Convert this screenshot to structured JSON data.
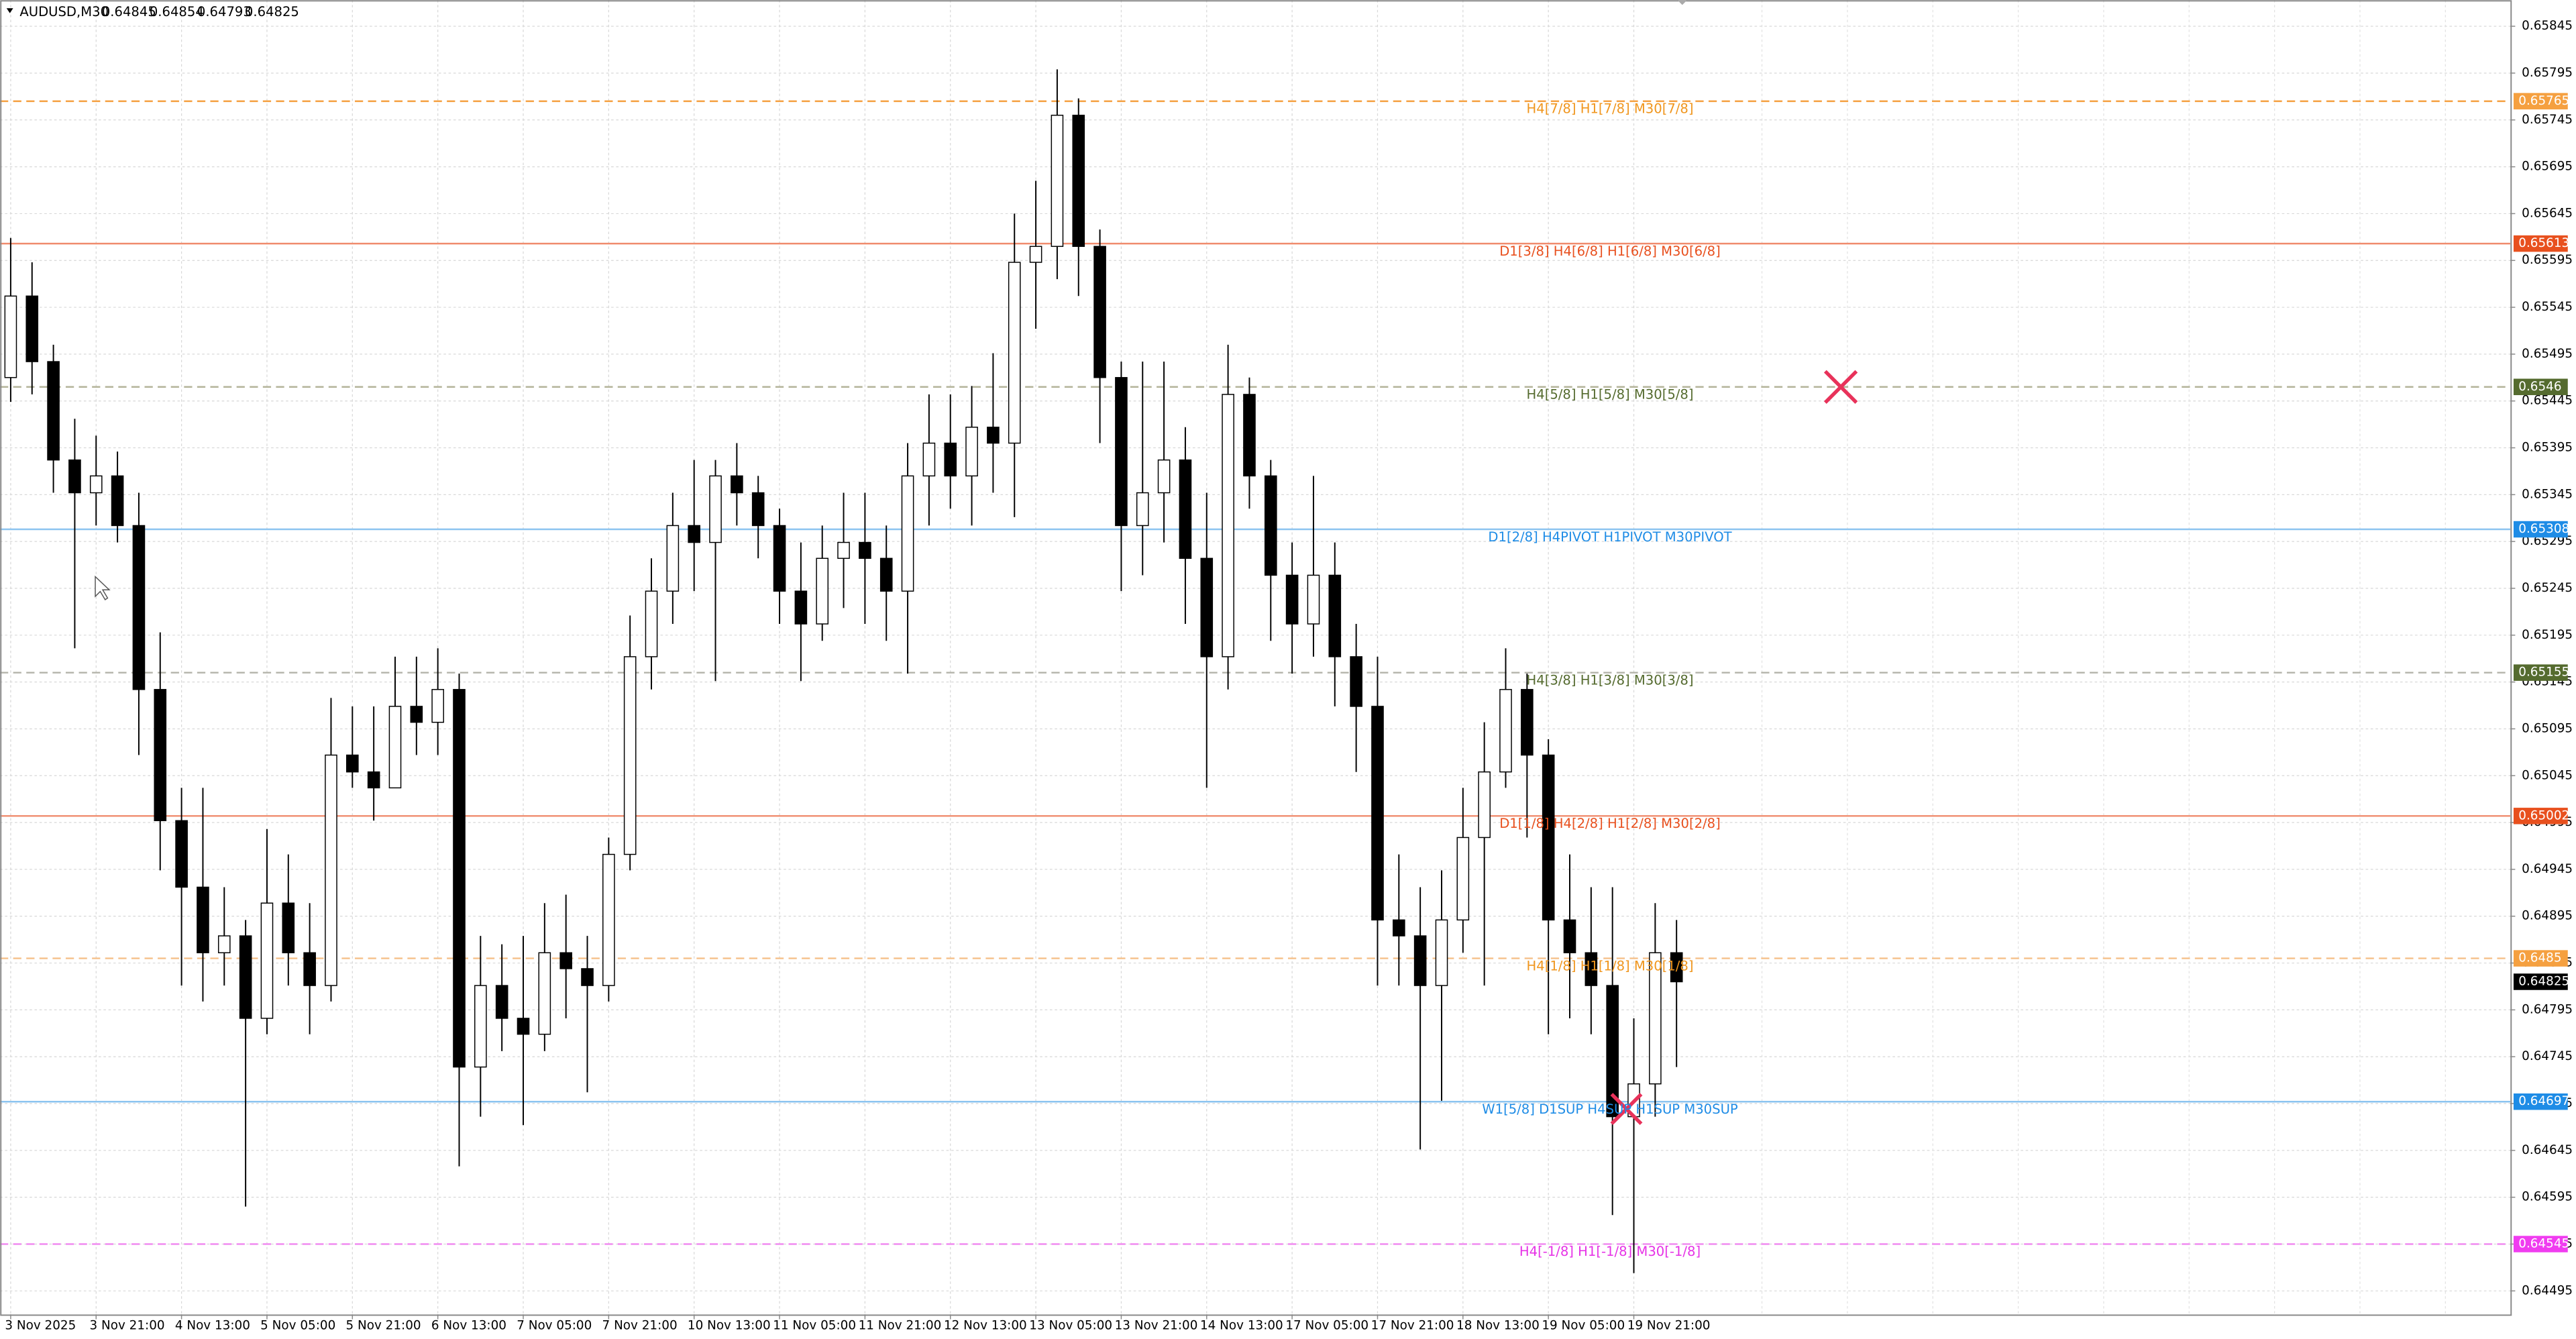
{
  "chart_data": {
    "type": "candlestick",
    "symbol": "AUDUSD,M30",
    "quote": [
      0.64845,
      0.64854,
      0.64793,
      0.64825
    ],
    "ylim": [
      0.6447,
      0.65873
    ],
    "yticks": [
      0.65845,
      0.65795,
      0.65745,
      0.65695,
      0.65645,
      0.65595,
      0.65545,
      0.65495,
      0.65445,
      0.65395,
      0.65345,
      0.65295,
      0.65245,
      0.65195,
      0.65145,
      0.65095,
      0.65045,
      0.64995,
      0.64945,
      0.64895,
      0.64845,
      0.64795,
      0.64745,
      0.64695,
      0.64645,
      0.64595,
      0.64545,
      0.64495
    ],
    "grid": true,
    "up_color": "#ffffff",
    "down_color": "#000000",
    "categories": [
      "3 Nov 2025",
      null,
      null,
      null,
      "3 Nov 21:00",
      null,
      null,
      null,
      "4 Nov 13:00",
      null,
      null,
      null,
      "5 Nov 05:00",
      null,
      null,
      null,
      "5 Nov 21:00",
      null,
      null,
      null,
      "6 Nov 13:00",
      null,
      null,
      null,
      "7 Nov 05:00",
      null,
      null,
      null,
      "7 Nov 21:00",
      null,
      null,
      null,
      "10 Nov 13:00",
      null,
      null,
      null,
      "11 Nov 05:00",
      null,
      null,
      null,
      "11 Nov 21:00",
      null,
      null,
      null,
      "12 Nov 13:00",
      null,
      null,
      null,
      "13 Nov 05:00",
      null,
      null,
      null,
      "13 Nov 21:00",
      null,
      null,
      null,
      "14 Nov 13:00",
      null,
      null,
      null,
      "17 Nov 05:00",
      null,
      null,
      null,
      "17 Nov 21:00",
      null,
      null,
      null,
      "18 Nov 13:00",
      null,
      null,
      null,
      "19 Nov 05:00",
      null,
      null,
      null,
      "19 Nov 21:00",
      null,
      null
    ],
    "ohlc": [
      [
        0.6547,
        0.65619,
        0.65444,
        0.65557
      ],
      [
        0.65557,
        0.65593,
        0.65452,
        0.65487
      ],
      [
        0.65487,
        0.65505,
        0.65347,
        0.65382
      ],
      [
        0.65382,
        0.65426,
        0.65181,
        0.65347
      ],
      [
        0.65347,
        0.65408,
        0.65312,
        0.65365
      ],
      [
        0.65365,
        0.65391,
        0.65294,
        0.65312
      ],
      [
        0.65312,
        0.65347,
        0.65067,
        0.65137
      ],
      [
        0.65137,
        0.65198,
        0.64944,
        0.64997
      ],
      [
        0.64997,
        0.65032,
        0.64821,
        0.64926
      ],
      [
        0.64926,
        0.65032,
        0.64804,
        0.64856
      ],
      [
        0.64856,
        0.64926,
        0.64821,
        0.64874
      ],
      [
        0.64874,
        0.64891,
        0.64585,
        0.64786
      ],
      [
        0.64786,
        0.64988,
        0.64769,
        0.64909
      ],
      [
        0.64909,
        0.64961,
        0.64821,
        0.64856
      ],
      [
        0.64856,
        0.64909,
        0.64769,
        0.64821
      ],
      [
        0.64821,
        0.65128,
        0.64804,
        0.65067
      ],
      [
        0.65067,
        0.65119,
        0.65032,
        0.65049
      ],
      [
        0.65049,
        0.65119,
        0.64997,
        0.65032
      ],
      [
        0.65032,
        0.65172,
        0.65032,
        0.65119
      ],
      [
        0.65119,
        0.65172,
        0.65067,
        0.65102
      ],
      [
        0.65102,
        0.65181,
        0.65067,
        0.65137
      ],
      [
        0.65137,
        0.65154,
        0.64628,
        0.64734
      ],
      [
        0.64734,
        0.64874,
        0.64681,
        0.64821
      ],
      [
        0.64821,
        0.64865,
        0.64751,
        0.64786
      ],
      [
        0.64786,
        0.64874,
        0.64672,
        0.64769
      ],
      [
        0.64769,
        0.64909,
        0.64751,
        0.64856
      ],
      [
        0.64856,
        0.64918,
        0.64786,
        0.64839
      ],
      [
        0.64839,
        0.64874,
        0.64707,
        0.64821
      ],
      [
        0.64821,
        0.64979,
        0.64804,
        0.64961
      ],
      [
        0.64961,
        0.65216,
        0.64944,
        0.65172
      ],
      [
        0.65172,
        0.65277,
        0.65137,
        0.65242
      ],
      [
        0.65242,
        0.65347,
        0.65207,
        0.65312
      ],
      [
        0.65312,
        0.65382,
        0.65242,
        0.65294
      ],
      [
        0.65294,
        0.65382,
        0.65146,
        0.65365
      ],
      [
        0.65365,
        0.654,
        0.65312,
        0.65347
      ],
      [
        0.65347,
        0.65365,
        0.65277,
        0.65312
      ],
      [
        0.65312,
        0.6533,
        0.65207,
        0.65242
      ],
      [
        0.65242,
        0.65294,
        0.65146,
        0.65207
      ],
      [
        0.65207,
        0.65312,
        0.65189,
        0.65277
      ],
      [
        0.65277,
        0.65347,
        0.65224,
        0.65294
      ],
      [
        0.65294,
        0.65347,
        0.65207,
        0.65277
      ],
      [
        0.65277,
        0.65312,
        0.65189,
        0.65242
      ],
      [
        0.65242,
        0.654,
        0.65154,
        0.65365
      ],
      [
        0.65365,
        0.65452,
        0.65312,
        0.654
      ],
      [
        0.654,
        0.65452,
        0.6533,
        0.65365
      ],
      [
        0.65365,
        0.65461,
        0.65312,
        0.65417
      ],
      [
        0.65417,
        0.65496,
        0.65347,
        0.654
      ],
      [
        0.654,
        0.65645,
        0.65321,
        0.65593
      ],
      [
        0.65593,
        0.6568,
        0.65522,
        0.6561
      ],
      [
        0.6561,
        0.65799,
        0.65575,
        0.6575
      ],
      [
        0.6575,
        0.65768,
        0.65557,
        0.6561
      ],
      [
        0.6561,
        0.65628,
        0.654,
        0.6547
      ],
      [
        0.6547,
        0.65487,
        0.65242,
        0.65312
      ],
      [
        0.65312,
        0.65487,
        0.65259,
        0.65347
      ],
      [
        0.65347,
        0.65487,
        0.65294,
        0.65382
      ],
      [
        0.65382,
        0.65417,
        0.65207,
        0.65277
      ],
      [
        0.65277,
        0.65347,
        0.65032,
        0.65172
      ],
      [
        0.65172,
        0.65505,
        0.65137,
        0.65452
      ],
      [
        0.65452,
        0.6547,
        0.6533,
        0.65365
      ],
      [
        0.65365,
        0.65382,
        0.65189,
        0.65259
      ],
      [
        0.65259,
        0.65294,
        0.65154,
        0.65207
      ],
      [
        0.65207,
        0.65365,
        0.65172,
        0.65259
      ],
      [
        0.65259,
        0.65294,
        0.65119,
        0.65172
      ],
      [
        0.65172,
        0.65207,
        0.65049,
        0.65119
      ],
      [
        0.65119,
        0.65172,
        0.64821,
        0.64891
      ],
      [
        0.64891,
        0.64961,
        0.64821,
        0.64874
      ],
      [
        0.64874,
        0.64926,
        0.64646,
        0.64821
      ],
      [
        0.64821,
        0.64944,
        0.64698,
        0.64891
      ],
      [
        0.64891,
        0.65032,
        0.64856,
        0.64979
      ],
      [
        0.64979,
        0.65102,
        0.64821,
        0.65049
      ],
      [
        0.65049,
        0.65181,
        0.65032,
        0.65137
      ],
      [
        0.65137,
        0.65154,
        0.64979,
        0.65067
      ],
      [
        0.65067,
        0.65084,
        0.64769,
        0.64891
      ],
      [
        0.64891,
        0.64961,
        0.64786,
        0.64856
      ],
      [
        0.64856,
        0.64926,
        0.64769,
        0.64821
      ],
      [
        0.64821,
        0.64926,
        0.64576,
        0.64681
      ],
      [
        0.64681,
        0.64786,
        0.64514,
        0.64716
      ],
      [
        0.64716,
        0.64909,
        0.64681,
        0.64856
      ],
      [
        0.64856,
        0.64891,
        0.64734,
        0.64825
      ]
    ],
    "levels": [
      {
        "price": 0.65765,
        "label": "H4[7/8] H1[7/8] M30[7/8]",
        "color": "#f5a040",
        "text_color": "#f0961e",
        "box": "#f5a040",
        "dashed": true
      },
      {
        "price": 0.65613,
        "label": "D1[3/8] H4[6/8] H1[6/8] M30[6/8]",
        "color": "#f08c6e",
        "text_color": "#e8501e",
        "box": "#e8501e",
        "dashed": false
      },
      {
        "price": 0.6546,
        "label": "H4[5/8] H1[5/8] M30[5/8]",
        "color": "#b4b49a",
        "text_color": "#556b2f",
        "box": "#556b2f",
        "dashed": true
      },
      {
        "price": 0.65308,
        "label": "D1[2/8] H4PIVOT H1PIVOT M30PIVOT",
        "color": "#8cc4f0",
        "text_color": "#1e8ce6",
        "box": "#1e8ce6",
        "dashed": false
      },
      {
        "price": 0.65155,
        "label": "H4[3/8] H1[3/8] M30[3/8]",
        "color": "#b4b4aa",
        "text_color": "#556b2f",
        "box": "#556b2f",
        "dashed": true
      },
      {
        "price": 0.65002,
        "label": "D1[1/8] H4[2/8] H1[2/8] M30[2/8]",
        "color": "#f08c6e",
        "text_color": "#e8501e",
        "box": "#e8501e",
        "dashed": false
      },
      {
        "price": 0.6485,
        "label": "H4[1/8] H1[1/8] M30[1/8]",
        "color": "#f5c08a",
        "text_color": "#f0961e",
        "box": "#f5a040",
        "dashed": true
      },
      {
        "price": 0.64697,
        "label": "W1[5/8] D1SUP H4SUP H1SUP M30SUP",
        "color": "#8cc4f0",
        "text_color": "#1e8ce6",
        "box": "#1e8ce6",
        "dashed": false
      },
      {
        "price": 0.64545,
        "label": "H4[-1/8] H1[-1/8] M30[-1/8]",
        "color": "#f08cf0",
        "text_color": "#e632e6",
        "box": "#f03cf0",
        "dashed": true
      }
    ]
  }
}
